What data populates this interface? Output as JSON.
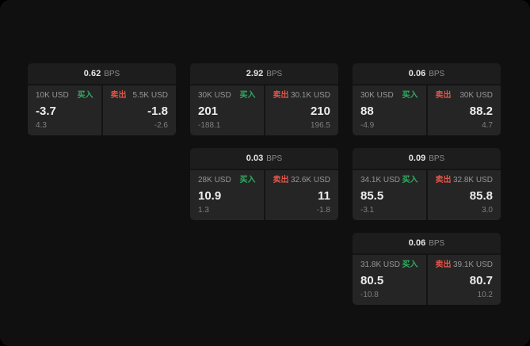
{
  "labels": {
    "buy": "买入",
    "sell": "卖出",
    "bps_unit": "BPS"
  },
  "colors": {
    "buy_green": "#2fae63",
    "sell_red": "#e25549",
    "card_header_bg": "#1d1d1d",
    "panel_bg": "#252525",
    "screen_bg": "#101010"
  },
  "cards": [
    {
      "bps": "0.62",
      "buy": {
        "size": "10K USD",
        "value": "-3.7",
        "sub": "4.3"
      },
      "sell": {
        "size": "5.5K USD",
        "value": "-1.8",
        "sub": "-2.6"
      }
    },
    {
      "bps": "2.92",
      "buy": {
        "size": "30K USD",
        "value": "201",
        "sub": "-188.1"
      },
      "sell": {
        "size": "30.1K USD",
        "value": "210",
        "sub": "196.5"
      }
    },
    {
      "bps": "0.06",
      "buy": {
        "size": "30K USD",
        "value": "88",
        "sub": "-4.9"
      },
      "sell": {
        "size": "30K USD",
        "value": "88.2",
        "sub": "4.7"
      }
    },
    {
      "bps": "0.03",
      "buy": {
        "size": "28K USD",
        "value": "10.9",
        "sub": "1.3"
      },
      "sell": {
        "size": "32.6K USD",
        "value": "11",
        "sub": "-1.8"
      }
    },
    {
      "bps": "0.09",
      "buy": {
        "size": "34.1K USD",
        "value": "85.5",
        "sub": "-3.1"
      },
      "sell": {
        "size": "32.8K USD",
        "value": "85.8",
        "sub": "3.0"
      }
    },
    {
      "bps": "0.06",
      "buy": {
        "size": "31.8K USD",
        "value": "80.5",
        "sub": "-10.8"
      },
      "sell": {
        "size": "39.1K USD",
        "value": "80.7",
        "sub": "10.2"
      }
    }
  ]
}
